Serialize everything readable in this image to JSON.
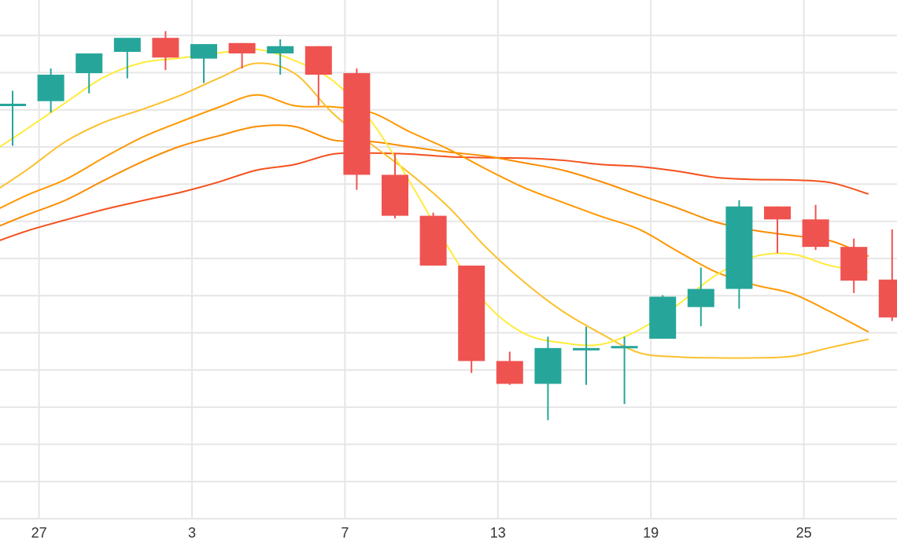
{
  "chart_data": {
    "type": "candlestick",
    "x_ticks": [
      "27",
      "3",
      "7",
      "13",
      "19",
      "25"
    ],
    "grid": true,
    "ylim": [
      0,
      100
    ],
    "colors": {
      "up": "#26a69a",
      "down": "#ef5350",
      "grid": "#e6e6e6",
      "ma_fast": "#ffeb3b",
      "ma_2": "#fbc02d",
      "ma_3": "#ff9800",
      "ma_4": "#fb8c00",
      "ma_slow": "#f4511e"
    },
    "candles": [
      {
        "open": 80.0,
        "high": 82.5,
        "low": 71.9,
        "close": 80.0
      },
      {
        "open": 80.5,
        "high": 86.8,
        "low": 78.3,
        "close": 85.6
      },
      {
        "open": 85.9,
        "high": 89.3,
        "low": 82.0,
        "close": 89.7
      },
      {
        "open": 90.0,
        "high": 91.7,
        "low": 84.9,
        "close": 92.7
      },
      {
        "open": 92.7,
        "high": 94.0,
        "low": 86.5,
        "close": 88.9
      },
      {
        "open": 88.7,
        "high": 91.5,
        "low": 84.0,
        "close": 91.5
      },
      {
        "open": 91.7,
        "high": 91.7,
        "low": 86.8,
        "close": 89.7
      },
      {
        "open": 89.7,
        "high": 92.4,
        "low": 85.6,
        "close": 91.1
      },
      {
        "open": 91.1,
        "high": 91.1,
        "low": 79.7,
        "close": 85.6
      },
      {
        "open": 85.9,
        "high": 86.8,
        "low": 63.4,
        "close": 66.3
      },
      {
        "open": 66.3,
        "high": 70.4,
        "low": 57.9,
        "close": 58.4
      },
      {
        "open": 58.4,
        "high": 59.0,
        "low": 48.8,
        "close": 48.8
      },
      {
        "open": 48.8,
        "high": 48.8,
        "low": 28.1,
        "close": 30.4
      },
      {
        "open": 30.4,
        "high": 32.2,
        "low": 25.8,
        "close": 26.0
      },
      {
        "open": 26.0,
        "high": 35.1,
        "low": 19.0,
        "close": 32.9
      },
      {
        "open": 32.9,
        "high": 37.0,
        "low": 25.8,
        "close": 32.9
      },
      {
        "open": 32.9,
        "high": 35.1,
        "low": 22.1,
        "close": 33.3
      },
      {
        "open": 34.7,
        "high": 43.1,
        "low": 34.7,
        "close": 42.8
      },
      {
        "open": 40.8,
        "high": 48.4,
        "low": 37.1,
        "close": 44.3
      },
      {
        "open": 44.3,
        "high": 61.4,
        "low": 40.5,
        "close": 60.2
      },
      {
        "open": 60.2,
        "high": 60.2,
        "low": 51.2,
        "close": 57.7
      },
      {
        "open": 57.7,
        "high": 60.5,
        "low": 51.8,
        "close": 52.4
      },
      {
        "open": 52.4,
        "high": 54.0,
        "low": 43.5,
        "close": 45.9
      },
      {
        "open": 46.1,
        "high": 55.8,
        "low": 38.1,
        "close": 38.8
      }
    ],
    "moving_averages": [
      {
        "key": "ma_fast",
        "values": [
          70.3,
          75.2,
          80.2,
          85.1,
          87.9,
          88.8,
          89.8,
          90.5,
          88.3,
          84.4,
          76.6,
          65.0,
          52.4,
          41.5,
          35.7,
          33.9,
          33.6,
          36.4,
          41.2,
          46.9,
          50.5,
          51.0,
          48.8,
          47.5
        ]
      },
      {
        "key": "ma_2",
        "values": [
          62.4,
          67.3,
          72.7,
          76.4,
          78.9,
          81.6,
          84.9,
          87.8,
          85.8,
          78.1,
          72.2,
          66.6,
          60.2,
          52.3,
          45.6,
          40.0,
          35.7,
          32.0,
          31.2,
          31.0,
          31.0,
          31.3,
          33.0,
          34.6
        ]
      },
      {
        "key": "ma_3",
        "values": [
          58.8,
          62.4,
          65.4,
          69.6,
          73.5,
          76.5,
          79.3,
          81.7,
          79.6,
          79.4,
          78.3,
          74.6,
          71.3,
          67.4,
          63.8,
          61.0,
          58.3,
          55.8,
          51.6,
          47.6,
          45.1,
          43.4,
          39.9,
          36.0
        ]
      },
      {
        "key": "ma_4",
        "values": [
          55.6,
          58.6,
          61.4,
          65.2,
          68.8,
          71.8,
          73.8,
          75.6,
          75.6,
          73.0,
          72.7,
          71.7,
          70.7,
          69.9,
          68.6,
          67.2,
          65.0,
          62.4,
          59.9,
          57.2,
          55.6,
          54.6,
          53.6,
          50.6
        ]
      },
      {
        "key": "ma_slow",
        "values": [
          52.9,
          55.5,
          57.6,
          59.6,
          61.3,
          62.9,
          64.9,
          67.2,
          68.3,
          70.3,
          70.5,
          70.3,
          69.8,
          69.6,
          69.5,
          69.1,
          68.3,
          67.9,
          67.0,
          65.8,
          65.4,
          65.3,
          64.8,
          62.6
        ]
      }
    ]
  }
}
